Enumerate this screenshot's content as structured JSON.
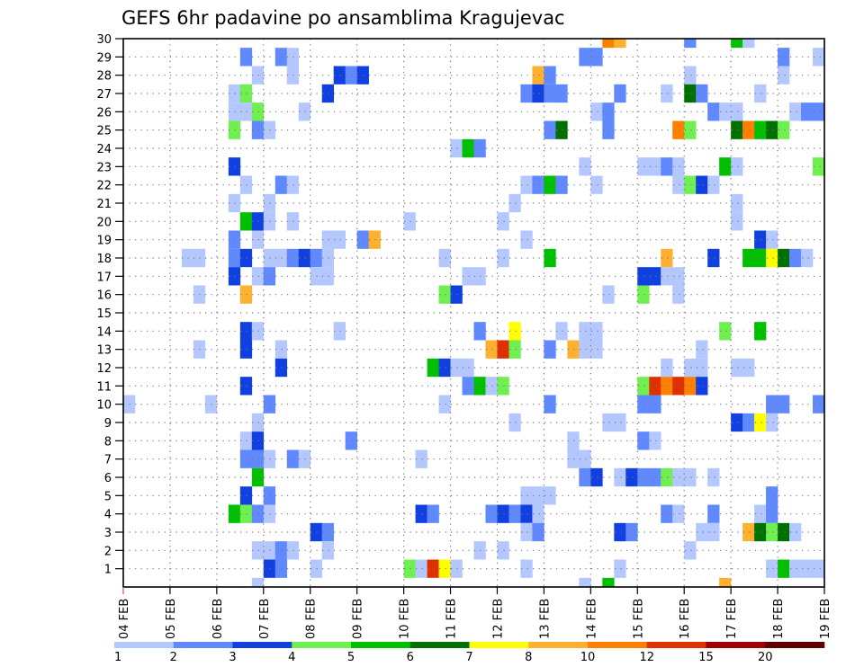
{
  "chart_data": {
    "type": "heatmap",
    "title": "GEFS 6hr padavine po ansamblima Kragujevac",
    "xlabel": "",
    "ylabel": "",
    "x_step_hours": 6,
    "x_tick_labels": [
      "04 FEB",
      "05 FEB",
      "06 FEB",
      "07 FEB",
      "08 FEB",
      "09 FEB",
      "10 FEB",
      "11 FEB",
      "12 FEB",
      "13 FEB",
      "14 FEB",
      "15 FEB",
      "16 FEB",
      "17 FEB",
      "18 FEB",
      "19 FEB"
    ],
    "y_tick_labels": [
      "1",
      "2",
      "3",
      "4",
      "5",
      "6",
      "7",
      "8",
      "9",
      "10",
      "11",
      "12",
      "13",
      "14",
      "15",
      "16",
      "17",
      "18",
      "19",
      "20",
      "21",
      "22",
      "23",
      "24",
      "25",
      "26",
      "27",
      "28",
      "29",
      "30"
    ],
    "ylim": [
      0,
      30
    ],
    "grid": true,
    "legend": {
      "placement": "bottom",
      "bounds": [
        "1",
        "2",
        "3",
        "4",
        "5",
        "6",
        "7",
        "8",
        "10",
        "12",
        "15",
        "20"
      ],
      "colors": [
        "#b4c8ff",
        "#6088ff",
        "#1040e0",
        "#70f050",
        "#00c000",
        "#007000",
        "#ffff00",
        "#ffb030",
        "#ff8000",
        "#e03000",
        "#a00000",
        "#600000"
      ]
    },
    "cells_format": "[time_step_index_from_04FEB_00Z, ensemble_member, legend_bin_index]",
    "cells": [
      [
        41,
        30,
        8
      ],
      [
        42,
        30,
        7
      ],
      [
        48,
        30,
        1
      ],
      [
        52,
        30,
        4
      ],
      [
        53,
        30,
        0
      ],
      [
        10,
        29,
        1
      ],
      [
        13,
        29,
        1
      ],
      [
        14,
        29,
        0
      ],
      [
        39,
        29,
        1
      ],
      [
        40,
        29,
        1
      ],
      [
        56,
        29,
        1
      ],
      [
        59,
        29,
        0
      ],
      [
        11,
        28,
        0
      ],
      [
        14,
        28,
        0
      ],
      [
        18,
        28,
        2
      ],
      [
        19,
        28,
        1
      ],
      [
        20,
        28,
        2
      ],
      [
        35,
        28,
        7
      ],
      [
        36,
        28,
        1
      ],
      [
        48,
        28,
        0
      ],
      [
        56,
        28,
        0
      ],
      [
        9,
        27,
        0
      ],
      [
        10,
        27,
        3
      ],
      [
        17,
        27,
        2
      ],
      [
        34,
        27,
        1
      ],
      [
        35,
        27,
        2
      ],
      [
        36,
        27,
        1
      ],
      [
        37,
        27,
        1
      ],
      [
        42,
        27,
        1
      ],
      [
        46,
        27,
        0
      ],
      [
        48,
        27,
        5
      ],
      [
        49,
        27,
        1
      ],
      [
        54,
        27,
        0
      ],
      [
        9,
        26,
        0
      ],
      [
        10,
        26,
        0
      ],
      [
        11,
        26,
        3
      ],
      [
        15,
        26,
        0
      ],
      [
        40,
        26,
        0
      ],
      [
        41,
        26,
        1
      ],
      [
        50,
        26,
        1
      ],
      [
        51,
        26,
        0
      ],
      [
        52,
        26,
        0
      ],
      [
        57,
        26,
        0
      ],
      [
        58,
        26,
        1
      ],
      [
        59,
        26,
        1
      ],
      [
        9,
        25,
        3
      ],
      [
        11,
        25,
        1
      ],
      [
        12,
        25,
        0
      ],
      [
        36,
        25,
        1
      ],
      [
        37,
        25,
        5
      ],
      [
        41,
        25,
        1
      ],
      [
        47,
        25,
        8
      ],
      [
        48,
        25,
        3
      ],
      [
        52,
        25,
        5
      ],
      [
        53,
        25,
        8
      ],
      [
        54,
        25,
        4
      ],
      [
        55,
        25,
        5
      ],
      [
        56,
        25,
        3
      ],
      [
        28,
        24,
        0
      ],
      [
        29,
        24,
        4
      ],
      [
        30,
        24,
        1
      ],
      [
        9,
        23,
        2
      ],
      [
        39,
        23,
        0
      ],
      [
        44,
        23,
        0
      ],
      [
        45,
        23,
        0
      ],
      [
        46,
        23,
        1
      ],
      [
        47,
        23,
        0
      ],
      [
        51,
        23,
        4
      ],
      [
        52,
        23,
        0
      ],
      [
        59,
        23,
        3
      ],
      [
        10,
        22,
        0
      ],
      [
        13,
        22,
        1
      ],
      [
        14,
        22,
        0
      ],
      [
        34,
        22,
        0
      ],
      [
        35,
        22,
        1
      ],
      [
        36,
        22,
        4
      ],
      [
        37,
        22,
        1
      ],
      [
        40,
        22,
        0
      ],
      [
        47,
        22,
        0
      ],
      [
        48,
        22,
        3
      ],
      [
        49,
        22,
        2
      ],
      [
        50,
        22,
        0
      ],
      [
        9,
        21,
        0
      ],
      [
        12,
        21,
        0
      ],
      [
        33,
        21,
        0
      ],
      [
        52,
        21,
        0
      ],
      [
        10,
        20,
        4
      ],
      [
        11,
        20,
        2
      ],
      [
        12,
        20,
        0
      ],
      [
        14,
        20,
        0
      ],
      [
        24,
        20,
        0
      ],
      [
        32,
        20,
        0
      ],
      [
        52,
        20,
        0
      ],
      [
        9,
        19,
        1
      ],
      [
        11,
        19,
        0
      ],
      [
        17,
        19,
        0
      ],
      [
        18,
        19,
        0
      ],
      [
        20,
        19,
        1
      ],
      [
        21,
        19,
        7
      ],
      [
        34,
        19,
        0
      ],
      [
        54,
        19,
        2
      ],
      [
        55,
        19,
        0
      ],
      [
        5,
        18,
        0
      ],
      [
        6,
        18,
        0
      ],
      [
        9,
        18,
        1
      ],
      [
        10,
        18,
        2
      ],
      [
        12,
        18,
        0
      ],
      [
        13,
        18,
        0
      ],
      [
        14,
        18,
        1
      ],
      [
        15,
        18,
        2
      ],
      [
        16,
        18,
        1
      ],
      [
        17,
        18,
        0
      ],
      [
        27,
        18,
        0
      ],
      [
        32,
        18,
        0
      ],
      [
        36,
        18,
        4
      ],
      [
        46,
        18,
        7
      ],
      [
        50,
        18,
        2
      ],
      [
        53,
        18,
        4
      ],
      [
        54,
        18,
        4
      ],
      [
        55,
        18,
        6
      ],
      [
        56,
        18,
        5
      ],
      [
        57,
        18,
        1
      ],
      [
        58,
        18,
        0
      ],
      [
        9,
        17,
        2
      ],
      [
        11,
        17,
        0
      ],
      [
        12,
        17,
        1
      ],
      [
        16,
        17,
        0
      ],
      [
        17,
        17,
        0
      ],
      [
        29,
        17,
        0
      ],
      [
        30,
        17,
        0
      ],
      [
        44,
        17,
        2
      ],
      [
        45,
        17,
        2
      ],
      [
        46,
        17,
        0
      ],
      [
        47,
        17,
        0
      ],
      [
        6,
        16,
        0
      ],
      [
        10,
        16,
        7
      ],
      [
        27,
        16,
        3
      ],
      [
        28,
        16,
        2
      ],
      [
        41,
        16,
        0
      ],
      [
        44,
        16,
        3
      ],
      [
        47,
        16,
        0
      ],
      [
        10,
        14,
        2
      ],
      [
        11,
        14,
        0
      ],
      [
        18,
        14,
        0
      ],
      [
        30,
        14,
        1
      ],
      [
        33,
        14,
        6
      ],
      [
        37,
        14,
        0
      ],
      [
        39,
        14,
        0
      ],
      [
        40,
        14,
        0
      ],
      [
        51,
        14,
        3
      ],
      [
        54,
        14,
        4
      ],
      [
        6,
        13,
        0
      ],
      [
        10,
        13,
        2
      ],
      [
        13,
        13,
        0
      ],
      [
        31,
        13,
        7
      ],
      [
        32,
        13,
        9
      ],
      [
        33,
        13,
        3
      ],
      [
        36,
        13,
        1
      ],
      [
        38,
        13,
        7
      ],
      [
        39,
        13,
        0
      ],
      [
        40,
        13,
        0
      ],
      [
        49,
        13,
        0
      ],
      [
        13,
        12,
        2
      ],
      [
        26,
        12,
        4
      ],
      [
        27,
        12,
        2
      ],
      [
        28,
        12,
        0
      ],
      [
        29,
        12,
        0
      ],
      [
        46,
        12,
        0
      ],
      [
        48,
        12,
        0
      ],
      [
        49,
        12,
        0
      ],
      [
        52,
        12,
        0
      ],
      [
        53,
        12,
        0
      ],
      [
        10,
        11,
        2
      ],
      [
        29,
        11,
        1
      ],
      [
        30,
        11,
        4
      ],
      [
        31,
        11,
        0
      ],
      [
        32,
        11,
        3
      ],
      [
        44,
        11,
        3
      ],
      [
        45,
        11,
        9
      ],
      [
        46,
        11,
        8
      ],
      [
        47,
        11,
        9
      ],
      [
        48,
        11,
        8
      ],
      [
        49,
        11,
        2
      ],
      [
        0,
        10,
        0
      ],
      [
        7,
        10,
        0
      ],
      [
        12,
        10,
        1
      ],
      [
        27,
        10,
        0
      ],
      [
        36,
        10,
        1
      ],
      [
        44,
        10,
        1
      ],
      [
        45,
        10,
        1
      ],
      [
        55,
        10,
        1
      ],
      [
        56,
        10,
        1
      ],
      [
        59,
        10,
        1
      ],
      [
        11,
        9,
        0
      ],
      [
        33,
        9,
        0
      ],
      [
        41,
        9,
        0
      ],
      [
        42,
        9,
        0
      ],
      [
        52,
        9,
        2
      ],
      [
        53,
        9,
        1
      ],
      [
        54,
        9,
        6
      ],
      [
        55,
        9,
        0
      ],
      [
        10,
        8,
        0
      ],
      [
        11,
        8,
        2
      ],
      [
        19,
        8,
        1
      ],
      [
        38,
        8,
        0
      ],
      [
        44,
        8,
        1
      ],
      [
        45,
        8,
        0
      ],
      [
        10,
        7,
        1
      ],
      [
        11,
        7,
        1
      ],
      [
        12,
        7,
        0
      ],
      [
        14,
        7,
        1
      ],
      [
        15,
        7,
        0
      ],
      [
        25,
        7,
        0
      ],
      [
        38,
        7,
        0
      ],
      [
        39,
        7,
        0
      ],
      [
        11,
        6,
        4
      ],
      [
        39,
        6,
        1
      ],
      [
        40,
        6,
        2
      ],
      [
        42,
        6,
        0
      ],
      [
        43,
        6,
        2
      ],
      [
        44,
        6,
        1
      ],
      [
        45,
        6,
        1
      ],
      [
        46,
        6,
        3
      ],
      [
        47,
        6,
        0
      ],
      [
        48,
        6,
        0
      ],
      [
        50,
        6,
        0
      ],
      [
        10,
        5,
        2
      ],
      [
        12,
        5,
        1
      ],
      [
        34,
        5,
        0
      ],
      [
        35,
        5,
        0
      ],
      [
        36,
        5,
        0
      ],
      [
        55,
        5,
        1
      ],
      [
        9,
        4,
        4
      ],
      [
        10,
        4,
        3
      ],
      [
        11,
        4,
        1
      ],
      [
        12,
        4,
        0
      ],
      [
        25,
        4,
        2
      ],
      [
        26,
        4,
        1
      ],
      [
        31,
        4,
        1
      ],
      [
        32,
        4,
        2
      ],
      [
        33,
        4,
        1
      ],
      [
        34,
        4,
        2
      ],
      [
        35,
        4,
        0
      ],
      [
        46,
        4,
        1
      ],
      [
        47,
        4,
        0
      ],
      [
        50,
        4,
        1
      ],
      [
        54,
        4,
        0
      ],
      [
        55,
        4,
        1
      ],
      [
        16,
        3,
        2
      ],
      [
        17,
        3,
        1
      ],
      [
        34,
        3,
        0
      ],
      [
        35,
        3,
        1
      ],
      [
        42,
        3,
        2
      ],
      [
        43,
        3,
        1
      ],
      [
        49,
        3,
        0
      ],
      [
        50,
        3,
        0
      ],
      [
        53,
        3,
        7
      ],
      [
        54,
        3,
        5
      ],
      [
        55,
        3,
        3
      ],
      [
        56,
        3,
        5
      ],
      [
        57,
        3,
        0
      ],
      [
        11,
        2,
        0
      ],
      [
        12,
        2,
        0
      ],
      [
        13,
        2,
        1
      ],
      [
        14,
        2,
        0
      ],
      [
        17,
        2,
        0
      ],
      [
        30,
        2,
        0
      ],
      [
        32,
        2,
        0
      ],
      [
        48,
        2,
        0
      ],
      [
        12,
        1,
        2
      ],
      [
        13,
        1,
        1
      ],
      [
        16,
        1,
        0
      ],
      [
        24,
        1,
        3
      ],
      [
        25,
        1,
        0
      ],
      [
        26,
        1,
        9
      ],
      [
        27,
        1,
        6
      ],
      [
        28,
        1,
        0
      ],
      [
        34,
        1,
        0
      ],
      [
        42,
        1,
        0
      ],
      [
        55,
        1,
        0
      ],
      [
        56,
        1,
        4
      ],
      [
        57,
        1,
        0
      ],
      [
        58,
        1,
        0
      ],
      [
        59,
        1,
        0
      ],
      [
        11,
        0,
        0
      ],
      [
        39,
        0,
        0
      ],
      [
        41,
        0,
        4
      ],
      [
        51,
        0,
        7
      ]
    ]
  }
}
